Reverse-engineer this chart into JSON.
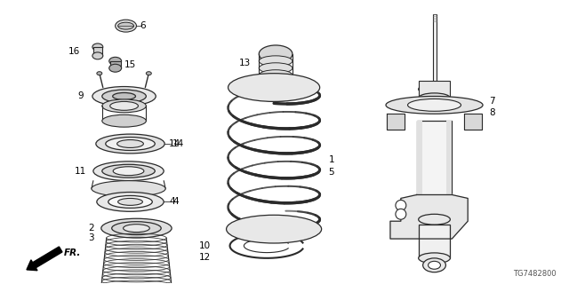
{
  "bg_color": "#ffffff",
  "line_color": "#2a2a2a",
  "diagram_code": "TG7482800",
  "figsize": [
    6.4,
    3.2
  ],
  "dpi": 100
}
